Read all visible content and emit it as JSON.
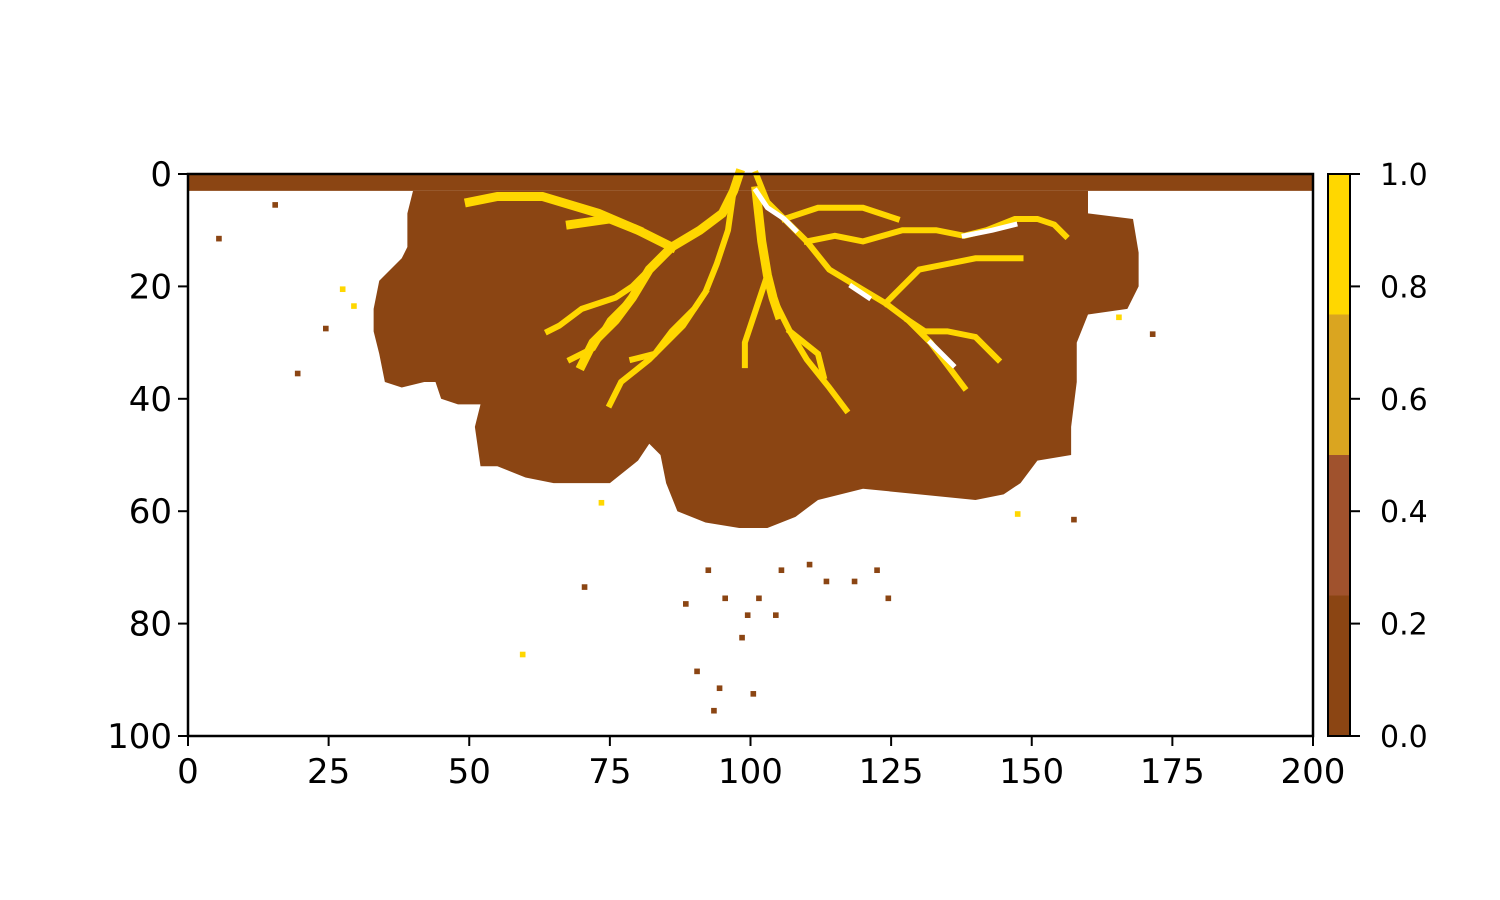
{
  "chart_data": {
    "type": "heatmap",
    "title": "",
    "xlabel": "",
    "ylabel": "",
    "xlim": [
      0,
      200
    ],
    "ylim": [
      100,
      0
    ],
    "grid_shape": [
      100,
      200
    ],
    "x_ticks": [
      0,
      25,
      50,
      75,
      100,
      125,
      150,
      175,
      200
    ],
    "y_ticks": [
      0,
      20,
      40,
      60,
      80,
      100
    ],
    "x_tick_labels": [
      "0",
      "25",
      "50",
      "75",
      "100",
      "125",
      "150",
      "175",
      "200"
    ],
    "y_tick_labels": [
      "0",
      "20",
      "40",
      "60",
      "80",
      "100"
    ],
    "colorbar": {
      "range": [
        0.0,
        1.0
      ],
      "ticks": [
        0.0,
        0.2,
        0.4,
        0.6,
        0.8,
        1.0
      ],
      "tick_labels": [
        "0.0",
        "0.2",
        "0.4",
        "0.6",
        "0.8",
        "1.0"
      ],
      "bins": [
        {
          "from": 0.0,
          "to": 0.25,
          "color": "#8b4513"
        },
        {
          "from": 0.25,
          "to": 0.5,
          "color": "#a0522d"
        },
        {
          "from": 0.5,
          "to": 0.75,
          "color": "#daa520"
        },
        {
          "from": 0.75,
          "to": 1.0,
          "color": "#ffd700"
        }
      ]
    },
    "masked_color": "#ffffff",
    "description_of_field": "0-valued sediment deposit with channels (~1.0) radiating from inlet at x=100, y=0",
    "regions": [
      {
        "value": 0.0,
        "kind": "band",
        "x": [
          0,
          200
        ],
        "y": [
          0,
          3
        ]
      },
      {
        "value": 0.0,
        "kind": "lobe",
        "outline": [
          [
            40,
            3
          ],
          [
            52,
            3
          ],
          [
            65,
            3
          ],
          [
            80,
            3
          ],
          [
            95,
            3
          ],
          [
            110,
            3
          ],
          [
            125,
            3
          ],
          [
            140,
            3
          ],
          [
            155,
            3
          ],
          [
            160,
            3
          ],
          [
            160,
            7
          ],
          [
            168,
            8
          ],
          [
            169,
            14
          ],
          [
            169,
            20
          ],
          [
            167,
            24
          ],
          [
            160,
            25
          ],
          [
            158,
            30
          ],
          [
            158,
            37
          ],
          [
            157,
            45
          ],
          [
            157,
            50
          ],
          [
            151,
            51
          ],
          [
            148,
            55
          ],
          [
            145,
            57
          ],
          [
            140,
            58
          ],
          [
            130,
            57
          ],
          [
            120,
            56
          ],
          [
            112,
            58
          ],
          [
            108,
            61
          ],
          [
            103,
            63
          ],
          [
            98,
            63
          ],
          [
            92,
            62
          ],
          [
            87,
            60
          ],
          [
            85,
            55
          ],
          [
            84,
            50
          ],
          [
            82,
            48
          ],
          [
            80,
            51
          ],
          [
            75,
            55
          ],
          [
            65,
            55
          ],
          [
            60,
            54
          ],
          [
            55,
            52
          ],
          [
            52,
            52
          ],
          [
            51,
            45
          ],
          [
            52,
            41
          ],
          [
            48,
            41
          ],
          [
            45,
            40
          ],
          [
            44,
            37
          ],
          [
            42,
            37
          ],
          [
            38,
            38
          ],
          [
            35,
            37
          ],
          [
            34,
            32
          ],
          [
            33,
            28
          ],
          [
            33,
            24
          ],
          [
            34,
            19
          ],
          [
            36,
            17
          ],
          [
            38,
            15
          ],
          [
            39,
            13
          ],
          [
            39,
            7
          ],
          [
            40,
            3
          ]
        ]
      }
    ],
    "channels_value": 1.0,
    "channels": [
      [
        [
          98,
          0
        ],
        [
          97,
          3
        ],
        [
          95,
          7
        ],
        [
          91,
          10
        ],
        [
          86,
          13
        ],
        [
          82,
          17
        ],
        [
          79,
          22
        ],
        [
          76,
          26
        ],
        [
          72,
          30
        ],
        [
          70,
          34
        ]
      ],
      [
        [
          86,
          13
        ],
        [
          80,
          10
        ],
        [
          73,
          7
        ],
        [
          63,
          4
        ],
        [
          55,
          4
        ],
        [
          50,
          5
        ]
      ],
      [
        [
          80,
          10
        ],
        [
          75,
          8
        ],
        [
          68,
          9
        ]
      ],
      [
        [
          82,
          17
        ],
        [
          79,
          20
        ],
        [
          76,
          22
        ],
        [
          70,
          24
        ],
        [
          66,
          27
        ],
        [
          64,
          28
        ]
      ],
      [
        [
          79,
          22
        ],
        [
          75,
          26
        ],
        [
          72,
          31
        ],
        [
          68,
          33
        ]
      ],
      [
        [
          97,
          3
        ],
        [
          96,
          10
        ],
        [
          94,
          16
        ],
        [
          92,
          21
        ],
        [
          90,
          24
        ],
        [
          86,
          28
        ],
        [
          83,
          32
        ],
        [
          79,
          33
        ]
      ],
      [
        [
          92,
          21
        ],
        [
          88,
          27
        ],
        [
          82,
          33
        ],
        [
          77,
          37
        ],
        [
          75,
          41
        ]
      ],
      [
        [
          101,
          3
        ],
        [
          102,
          12
        ],
        [
          103,
          18
        ],
        [
          104,
          22
        ],
        [
          105,
          25
        ]
      ],
      [
        [
          103,
          18
        ],
        [
          101,
          24
        ],
        [
          99,
          30
        ],
        [
          99,
          34
        ]
      ],
      [
        [
          104,
          22
        ],
        [
          107,
          28
        ],
        [
          110,
          33
        ],
        [
          114,
          38
        ],
        [
          117,
          42
        ]
      ],
      [
        [
          107,
          28
        ],
        [
          112,
          32
        ],
        [
          113,
          36
        ]
      ],
      [
        [
          101,
          0
        ],
        [
          103,
          5
        ],
        [
          106,
          8
        ],
        [
          110,
          12
        ],
        [
          114,
          17
        ],
        [
          119,
          20
        ],
        [
          124,
          23
        ],
        [
          128,
          26
        ],
        [
          132,
          30
        ],
        [
          135,
          34
        ],
        [
          138,
          38
        ]
      ],
      [
        [
          110,
          12
        ],
        [
          115,
          11
        ],
        [
          120,
          12
        ],
        [
          127,
          10
        ],
        [
          133,
          10
        ],
        [
          138,
          11
        ],
        [
          142,
          10
        ],
        [
          147,
          8
        ],
        [
          151,
          8
        ],
        [
          154,
          9
        ],
        [
          156,
          11
        ]
      ],
      [
        [
          124,
          23
        ],
        [
          127,
          20
        ],
        [
          130,
          17
        ],
        [
          135,
          16
        ],
        [
          140,
          15
        ],
        [
          148,
          15
        ]
      ],
      [
        [
          128,
          26
        ],
        [
          131,
          28
        ],
        [
          135,
          28
        ],
        [
          140,
          29
        ],
        [
          144,
          33
        ]
      ],
      [
        [
          106,
          8
        ],
        [
          112,
          6
        ],
        [
          120,
          6
        ],
        [
          126,
          8
        ]
      ]
    ],
    "channel_pixels_white": [
      [
        [
          101,
          3
        ],
        [
          103,
          6
        ],
        [
          106,
          8
        ],
        [
          108,
          10
        ]
      ],
      [
        [
          118,
          20
        ],
        [
          121,
          22
        ]
      ],
      [
        [
          132,
          30
        ],
        [
          136,
          34
        ]
      ],
      [
        [
          138,
          11
        ],
        [
          143,
          10
        ],
        [
          147,
          9
        ]
      ]
    ],
    "scattered_points": [
      {
        "x": 15,
        "y": 5,
        "value": 0.0
      },
      {
        "x": 5,
        "y": 11,
        "value": 0.0
      },
      {
        "x": 24,
        "y": 27,
        "value": 0.0
      },
      {
        "x": 19,
        "y": 35,
        "value": 0.0
      },
      {
        "x": 70,
        "y": 73,
        "value": 0.0
      },
      {
        "x": 88,
        "y": 76,
        "value": 0.0
      },
      {
        "x": 92,
        "y": 70,
        "value": 0.0
      },
      {
        "x": 95,
        "y": 75,
        "value": 0.0
      },
      {
        "x": 99,
        "y": 78,
        "value": 0.0
      },
      {
        "x": 101,
        "y": 75,
        "value": 0.0
      },
      {
        "x": 104,
        "y": 78,
        "value": 0.0
      },
      {
        "x": 98,
        "y": 82,
        "value": 0.0
      },
      {
        "x": 90,
        "y": 88,
        "value": 0.0
      },
      {
        "x": 94,
        "y": 91,
        "value": 0.0
      },
      {
        "x": 100,
        "y": 92,
        "value": 0.0
      },
      {
        "x": 93,
        "y": 95,
        "value": 0.0
      },
      {
        "x": 105,
        "y": 70,
        "value": 0.0
      },
      {
        "x": 110,
        "y": 69,
        "value": 0.0
      },
      {
        "x": 113,
        "y": 72,
        "value": 0.0
      },
      {
        "x": 118,
        "y": 72,
        "value": 0.0
      },
      {
        "x": 122,
        "y": 70,
        "value": 0.0
      },
      {
        "x": 124,
        "y": 75,
        "value": 0.0
      },
      {
        "x": 157,
        "y": 61,
        "value": 0.0
      },
      {
        "x": 171,
        "y": 28,
        "value": 0.0
      },
      {
        "x": 59,
        "y": 85,
        "value": 1.0
      },
      {
        "x": 27,
        "y": 20,
        "value": 1.0
      },
      {
        "x": 29,
        "y": 23,
        "value": 1.0
      },
      {
        "x": 147,
        "y": 60,
        "value": 1.0
      },
      {
        "x": 73,
        "y": 58,
        "value": 1.0
      },
      {
        "x": 165,
        "y": 25,
        "value": 1.0
      }
    ]
  }
}
